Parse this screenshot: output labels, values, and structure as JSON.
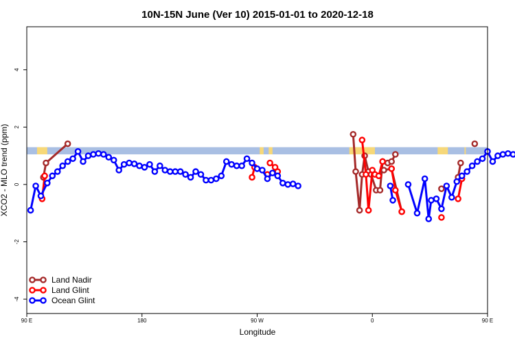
{
  "chart_data": {
    "type": "line",
    "title": "10N-15N June (Ver 10)   2015-01-01 to 2020-12-18",
    "xlabel": "Longitude",
    "ylabel": "XCO2 - MLO trend (ppm)",
    "xlim": [
      90,
      450
    ],
    "ylim": [
      -4.5,
      5.5
    ],
    "x_ticks": [
      {
        "value": 90,
        "label": "90 E"
      },
      {
        "value": 180,
        "label": "180"
      },
      {
        "value": 270,
        "label": "90 W"
      },
      {
        "value": 360,
        "label": "0"
      },
      {
        "value": 450,
        "label": "90 E"
      },
      {
        "value": 540,
        "label": "180"
      }
    ],
    "y_ticks": [
      {
        "value": -4,
        "label": "-4"
      },
      {
        "value": -2,
        "label": "-2"
      },
      {
        "value": 0,
        "label": "0"
      },
      {
        "value": 2,
        "label": "2"
      },
      {
        "value": 4,
        "label": "4"
      }
    ],
    "legend_position": "bottom-left",
    "land_band": {
      "y_range": [
        1.05,
        1.3
      ],
      "ocean_color": "#a9bfe3",
      "land_color": "#f7d878",
      "land_segments": [
        [
          98,
          106
        ],
        [
          272,
          275
        ],
        [
          279,
          282
        ],
        [
          342,
          362
        ],
        [
          411,
          416
        ],
        [
          416,
          419
        ],
        [
          432,
          433
        ]
      ]
    },
    "series": [
      {
        "name": "Land Nadir",
        "color": "#a52a2a",
        "segments": [
          [
            [
              103,
              0.25
            ],
            [
              105,
              0.75
            ],
            [
              122,
              1.42
            ]
          ],
          [
            [
              345,
              1.75
            ],
            [
              347,
              0.45
            ],
            [
              350,
              -0.9
            ],
            [
              352,
              0.35
            ],
            [
              354,
              1.0
            ],
            [
              357,
              0.45
            ],
            [
              359,
              0.35
            ],
            [
              363,
              -0.2
            ],
            [
              366,
              -0.2
            ],
            [
              368,
              0.8
            ],
            [
              372,
              0.75
            ],
            [
              375,
              0.8
            ],
            [
              378,
              1.05
            ]
          ],
          [
            [
              369,
              0.5
            ],
            [
              375,
              0.55
            ],
            [
              383,
              -0.95
            ]
          ],
          [
            [
              414,
              -0.15
            ]
          ],
          [
            [
              427,
              0.25
            ],
            [
              429,
              0.75
            ]
          ],
          [
            [
              440,
              1.42
            ]
          ]
        ]
      },
      {
        "name": "Land Glint",
        "color": "#ff0000",
        "segments": [
          [
            [
              102,
              -0.5
            ],
            [
              104,
              0.3
            ]
          ],
          [
            [
              266,
              0.25
            ],
            [
              268,
              0.6
            ]
          ],
          [
            [
              278,
              0.35
            ]
          ],
          [
            [
              280,
              0.75
            ],
            [
              284,
              0.6
            ],
            [
              286,
              0.45
            ]
          ],
          [
            [
              352,
              1.55
            ],
            [
              355,
              0.35
            ],
            [
              357,
              -0.9
            ],
            [
              360,
              0.5
            ],
            [
              362,
              0.35
            ],
            [
              365,
              0.3
            ],
            [
              368,
              0.8
            ]
          ],
          [
            [
              375,
              0.55
            ],
            [
              378,
              -0.2
            ],
            [
              383,
              -0.95
            ]
          ],
          [
            [
              414,
              -1.15
            ]
          ],
          [
            [
              427,
              -0.5
            ],
            [
              430,
              0.2
            ]
          ]
        ]
      },
      {
        "name": "Ocean Glint",
        "color": "#0000ff",
        "segments": [
          [
            [
              93,
              -0.9
            ],
            [
              97,
              -0.05
            ],
            [
              101,
              -0.4
            ],
            [
              106,
              0.05
            ],
            [
              110,
              0.3
            ],
            [
              114,
              0.45
            ],
            [
              118,
              0.65
            ],
            [
              122,
              0.8
            ],
            [
              126,
              0.9
            ],
            [
              130,
              1.15
            ],
            [
              134,
              0.8
            ],
            [
              138,
              1.0
            ],
            [
              142,
              1.05
            ],
            [
              146,
              1.08
            ],
            [
              150,
              1.05
            ],
            [
              154,
              0.95
            ],
            [
              158,
              0.85
            ],
            [
              162,
              0.5
            ],
            [
              166,
              0.7
            ],
            [
              170,
              0.75
            ],
            [
              174,
              0.72
            ],
            [
              178,
              0.65
            ],
            [
              182,
              0.6
            ],
            [
              186,
              0.7
            ],
            [
              190,
              0.45
            ],
            [
              194,
              0.65
            ],
            [
              198,
              0.5
            ],
            [
              202,
              0.45
            ],
            [
              206,
              0.45
            ],
            [
              210,
              0.45
            ],
            [
              214,
              0.35
            ],
            [
              218,
              0.25
            ],
            [
              222,
              0.45
            ],
            [
              226,
              0.35
            ],
            [
              230,
              0.15
            ],
            [
              234,
              0.15
            ],
            [
              238,
              0.2
            ],
            [
              242,
              0.3
            ],
            [
              246,
              0.8
            ],
            [
              250,
              0.7
            ],
            [
              254,
              0.65
            ],
            [
              258,
              0.65
            ],
            [
              262,
              0.9
            ],
            [
              266,
              0.75
            ],
            [
              270,
              0.55
            ],
            [
              274,
              0.5
            ],
            [
              278,
              0.2
            ],
            [
              282,
              0.4
            ],
            [
              286,
              0.3
            ],
            [
              290,
              0.05
            ],
            [
              294,
              0.0
            ],
            [
              298,
              0.02
            ],
            [
              302,
              -0.05
            ]
          ],
          [
            [
              374,
              -0.05
            ],
            [
              376,
              -0.55
            ]
          ],
          [
            [
              388,
              0.0
            ],
            [
              395,
              -1.0
            ],
            [
              401,
              0.2
            ],
            [
              404,
              -1.2
            ],
            [
              406,
              -0.55
            ],
            [
              410,
              -0.5
            ],
            [
              414,
              -0.85
            ],
            [
              418,
              -0.05
            ],
            [
              422,
              -0.45
            ],
            [
              426,
              0.1
            ],
            [
              430,
              0.3
            ],
            [
              434,
              0.45
            ],
            [
              438,
              0.65
            ],
            [
              442,
              0.8
            ],
            [
              446,
              0.9
            ],
            [
              450,
              1.15
            ],
            [
              454,
              0.8
            ],
            [
              458,
              1.0
            ],
            [
              462,
              1.05
            ],
            [
              466,
              1.08
            ],
            [
              470,
              1.05
            ],
            [
              474,
              0.95
            ],
            [
              478,
              0.85
            ],
            [
              482,
              0.5
            ]
          ]
        ]
      }
    ]
  }
}
